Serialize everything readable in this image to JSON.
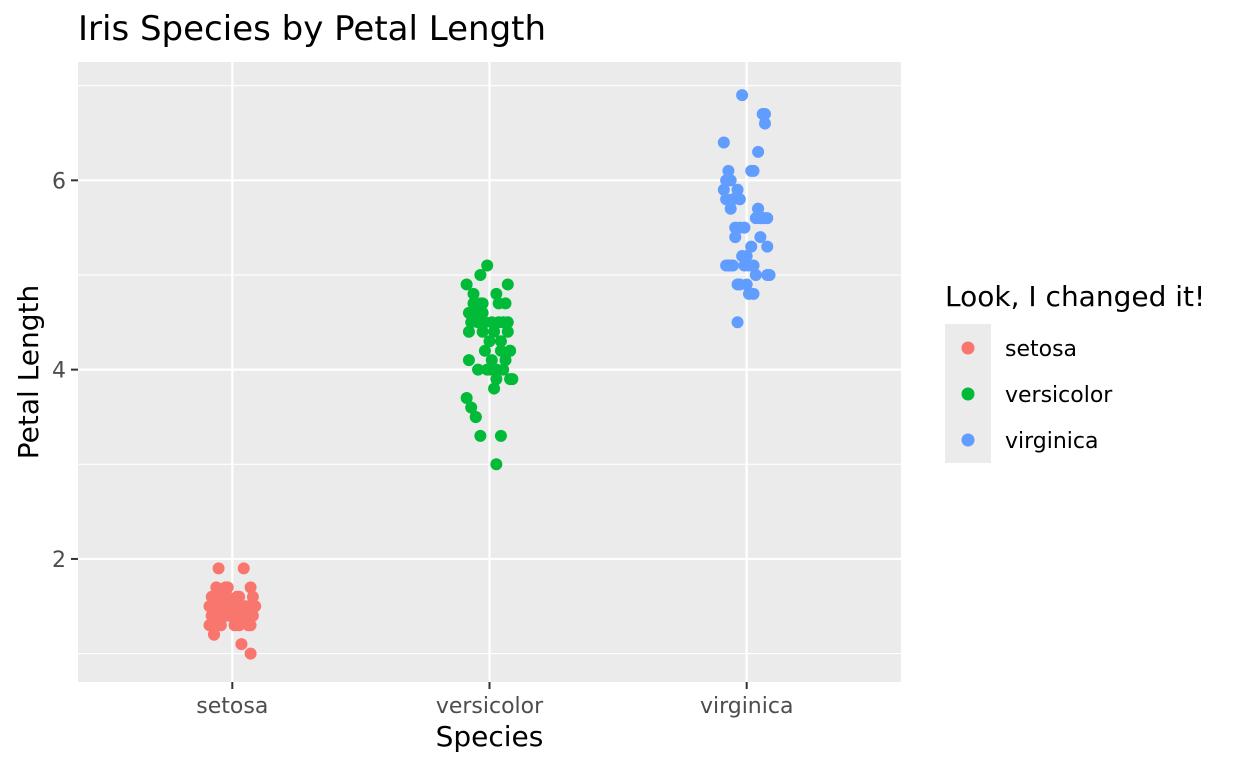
{
  "chart_data": {
    "type": "scatter",
    "title": "Iris Species by Petal Length",
    "xlabel": "Species",
    "ylabel": "Petal Length",
    "categories": [
      "setosa",
      "versicolor",
      "virginica"
    ],
    "y_ticks": [
      2,
      4,
      6
    ],
    "y_tick_labels": [
      "2",
      "4",
      "6"
    ],
    "ylim": [
      0.7,
      7.25
    ],
    "grid": true,
    "jitter": true,
    "legend": {
      "title": "Look, I changed it!",
      "position": "right",
      "entries": [
        "setosa",
        "versicolor",
        "virginica"
      ]
    },
    "colors": {
      "setosa": "#F8766D",
      "versicolor": "#00BA38",
      "virginica": "#619CFF",
      "panel": "#EBEBEB",
      "grid": "#FFFFFF",
      "legend_key": "#EBEBEB"
    },
    "series": [
      {
        "name": "setosa",
        "points": [
          [
            -0.035,
            1.4
          ],
          [
            0.005,
            1.4
          ],
          [
            -0.05,
            1.3
          ],
          [
            0.03,
            1.5
          ],
          [
            -0.015,
            1.4
          ],
          [
            0.04,
            1.7
          ],
          [
            -0.02,
            1.4
          ],
          [
            0.025,
            1.5
          ],
          [
            -0.045,
            1.4
          ],
          [
            0.015,
            1.5
          ],
          [
            -0.03,
            1.5
          ],
          [
            0.045,
            1.6
          ],
          [
            -0.005,
            1.4
          ],
          [
            0.02,
            1.1
          ],
          [
            -0.04,
            1.2
          ],
          [
            0.01,
            1.5
          ],
          [
            -0.025,
            1.3
          ],
          [
            0.035,
            1.4
          ],
          [
            -0.01,
            1.7
          ],
          [
            0.05,
            1.5
          ],
          [
            -0.035,
            1.7
          ],
          [
            0.0,
            1.5
          ],
          [
            0.04,
            1.0
          ],
          [
            -0.015,
            1.7
          ],
          [
            0.025,
            1.9
          ],
          [
            -0.045,
            1.6
          ],
          [
            0.015,
            1.6
          ],
          [
            -0.02,
            1.5
          ],
          [
            0.03,
            1.4
          ],
          [
            -0.03,
            1.6
          ],
          [
            0.01,
            1.6
          ],
          [
            -0.05,
            1.5
          ],
          [
            0.045,
            1.5
          ],
          [
            -0.005,
            1.4
          ],
          [
            0.02,
            1.5
          ],
          [
            -0.04,
            1.2
          ],
          [
            0.035,
            1.3
          ],
          [
            -0.015,
            1.4
          ],
          [
            0.005,
            1.3
          ],
          [
            -0.025,
            1.5
          ],
          [
            0.04,
            1.3
          ],
          [
            -0.035,
            1.3
          ],
          [
            0.015,
            1.3
          ],
          [
            -0.02,
            1.6
          ],
          [
            -0.03,
            1.9
          ],
          [
            0.025,
            1.4
          ],
          [
            -0.01,
            1.6
          ],
          [
            0.045,
            1.4
          ],
          [
            0.0,
            1.5
          ],
          [
            -0.045,
            1.4
          ]
        ]
      },
      {
        "name": "versicolor",
        "points": [
          [
            -0.035,
            4.7
          ],
          [
            0.005,
            4.5
          ],
          [
            -0.05,
            4.9
          ],
          [
            0.03,
            4.0
          ],
          [
            -0.015,
            4.6
          ],
          [
            0.04,
            4.5
          ],
          [
            -0.02,
            4.7
          ],
          [
            0.025,
            3.3
          ],
          [
            -0.045,
            4.6
          ],
          [
            0.015,
            3.9
          ],
          [
            -0.03,
            3.5
          ],
          [
            0.045,
            4.2
          ],
          [
            -0.005,
            4.0
          ],
          [
            0.02,
            4.7
          ],
          [
            -0.04,
            3.6
          ],
          [
            0.01,
            4.4
          ],
          [
            -0.025,
            4.5
          ],
          [
            0.035,
            4.1
          ],
          [
            -0.01,
            4.5
          ],
          [
            0.05,
            3.9
          ],
          [
            -0.035,
            4.8
          ],
          [
            0.0,
            4.0
          ],
          [
            0.04,
            4.9
          ],
          [
            -0.015,
            4.7
          ],
          [
            0.025,
            4.3
          ],
          [
            -0.045,
            4.4
          ],
          [
            0.015,
            4.8
          ],
          [
            -0.02,
            5.0
          ],
          [
            0.03,
            4.5
          ],
          [
            -0.03,
            3.5
          ],
          [
            0.01,
            3.8
          ],
          [
            -0.05,
            3.7
          ],
          [
            0.045,
            3.9
          ],
          [
            -0.005,
            5.1
          ],
          [
            0.02,
            4.5
          ],
          [
            -0.04,
            4.5
          ],
          [
            0.035,
            4.7
          ],
          [
            -0.015,
            4.4
          ],
          [
            0.005,
            4.1
          ],
          [
            -0.025,
            4.0
          ],
          [
            0.04,
            4.4
          ],
          [
            -0.035,
            4.6
          ],
          [
            0.015,
            4.0
          ],
          [
            -0.02,
            3.3
          ],
          [
            0.025,
            4.2
          ],
          [
            -0.01,
            4.2
          ],
          [
            0.045,
            4.2
          ],
          [
            0.0,
            4.3
          ],
          [
            0.015,
            3.0
          ],
          [
            -0.045,
            4.1
          ]
        ]
      },
      {
        "name": "virginica",
        "points": [
          [
            -0.035,
            6.0
          ],
          [
            0.005,
            5.1
          ],
          [
            -0.05,
            5.9
          ],
          [
            0.03,
            5.6
          ],
          [
            -0.015,
            5.8
          ],
          [
            0.04,
            6.6
          ],
          [
            -0.02,
            4.5
          ],
          [
            0.025,
            6.3
          ],
          [
            -0.045,
            5.8
          ],
          [
            0.015,
            6.1
          ],
          [
            -0.03,
            5.1
          ],
          [
            0.045,
            5.3
          ],
          [
            -0.005,
            5.5
          ],
          [
            0.02,
            5.0
          ],
          [
            -0.04,
            5.1
          ],
          [
            0.01,
            5.3
          ],
          [
            -0.025,
            5.5
          ],
          [
            0.035,
            6.7
          ],
          [
            -0.01,
            6.9
          ],
          [
            0.05,
            5.0
          ],
          [
            -0.035,
            5.7
          ],
          [
            0.0,
            4.9
          ],
          [
            0.04,
            6.7
          ],
          [
            -0.015,
            4.9
          ],
          [
            0.025,
            5.7
          ],
          [
            -0.045,
            6.0
          ],
          [
            0.015,
            4.8
          ],
          [
            -0.02,
            4.9
          ],
          [
            0.03,
            5.6
          ],
          [
            -0.03,
            5.8
          ],
          [
            0.01,
            6.1
          ],
          [
            -0.05,
            6.4
          ],
          [
            0.045,
            5.6
          ],
          [
            -0.005,
            5.1
          ],
          [
            0.02,
            5.6
          ],
          [
            -0.04,
            6.1
          ],
          [
            0.035,
            5.6
          ],
          [
            -0.015,
            5.5
          ],
          [
            0.005,
            4.8
          ],
          [
            -0.025,
            5.4
          ],
          [
            0.04,
            5.6
          ],
          [
            -0.035,
            5.1
          ],
          [
            0.015,
            5.1
          ],
          [
            -0.02,
            5.9
          ],
          [
            0.025,
            5.7
          ],
          [
            -0.01,
            5.2
          ],
          [
            0.045,
            5.0
          ],
          [
            0.0,
            5.2
          ],
          [
            0.03,
            5.4
          ],
          [
            -0.045,
            5.1
          ]
        ]
      }
    ]
  }
}
